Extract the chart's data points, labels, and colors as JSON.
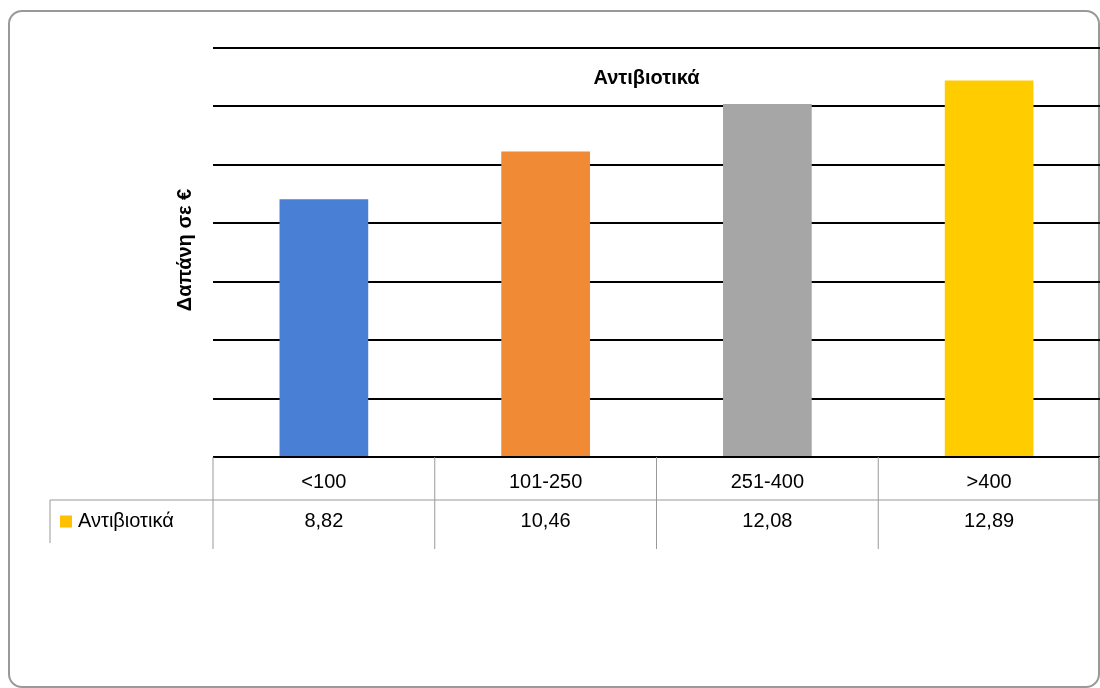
{
  "chart_data": {
    "type": "bar",
    "title": "Αντιβιοτικά",
    "ylabel": "Δαπάνη σε €",
    "categories": [
      "<100",
      "101-250",
      "251-400",
      ">400"
    ],
    "series": [
      {
        "name": "Αντιβιοτικά",
        "color": "#ffc000",
        "colors": [
          "#4a7fd6",
          "#f08a35",
          "#a6a6a6",
          "#ffcc00"
        ],
        "values": [
          8.82,
          10.46,
          12.08,
          12.89
        ],
        "value_labels": [
          "8,82",
          "10,46",
          "12,08",
          "12,89"
        ]
      }
    ],
    "ylim": [
      0,
      14
    ],
    "yticks": [
      {
        "value": 0,
        "label": null
      },
      {
        "value": 2,
        "label": null
      },
      {
        "value": 4,
        "label": null
      },
      {
        "value": 6,
        "label": null
      },
      {
        "value": 8,
        "label": null
      },
      {
        "value": 10,
        "label": null
      },
      {
        "value": 12,
        "label": null
      },
      {
        "value": 14,
        "label": null
      }
    ],
    "grid": "y",
    "legend": "bottom left",
    "tick_labels": "x"
  }
}
